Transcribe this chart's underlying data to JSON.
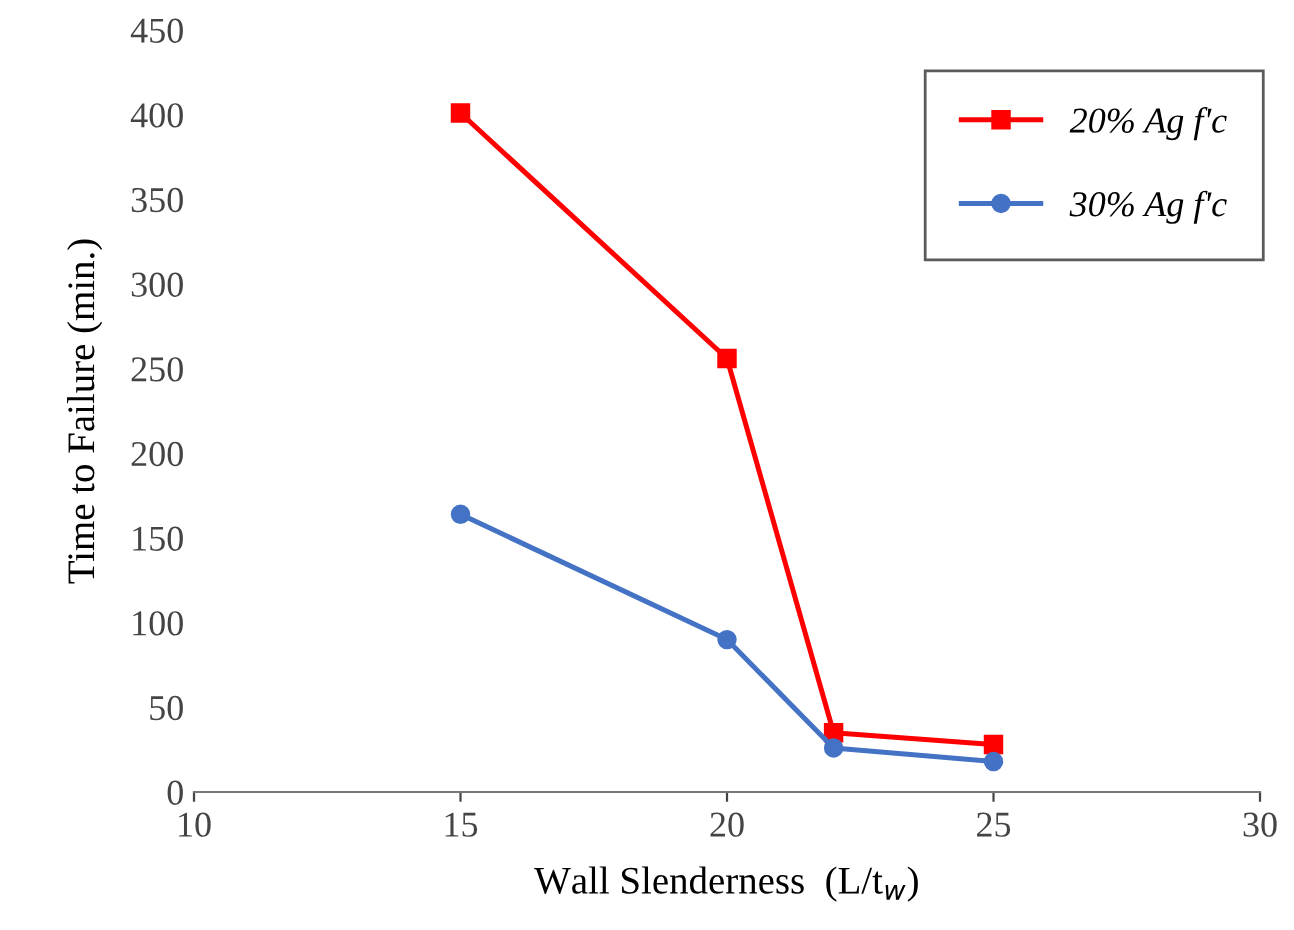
{
  "chart_data": {
    "type": "line",
    "xlabel": "Wall Slenderness  (L/t$_{w}$)",
    "ylabel": "Time to Failure (min.)",
    "xlim": [
      10,
      30
    ],
    "xticks": [
      10,
      15,
      20,
      25,
      30
    ],
    "ylim": [
      0,
      450
    ],
    "yticks": [
      0,
      50,
      100,
      150,
      200,
      250,
      300,
      350,
      400,
      450
    ],
    "grid": false,
    "legend": "top right",
    "line_style": "solid",
    "series": [
      {
        "name": "20% Ag f'c",
        "color": "#ff0000",
        "marker": "square",
        "x": [
          15,
          20,
          22,
          25
        ],
        "values": [
          401,
          256,
          35,
          28
        ]
      },
      {
        "name": "30% Ag f'c",
        "color": "#4472c4",
        "marker": "circle",
        "x": [
          15,
          20,
          22,
          25
        ],
        "values": [
          164,
          90,
          26,
          18
        ]
      }
    ]
  }
}
